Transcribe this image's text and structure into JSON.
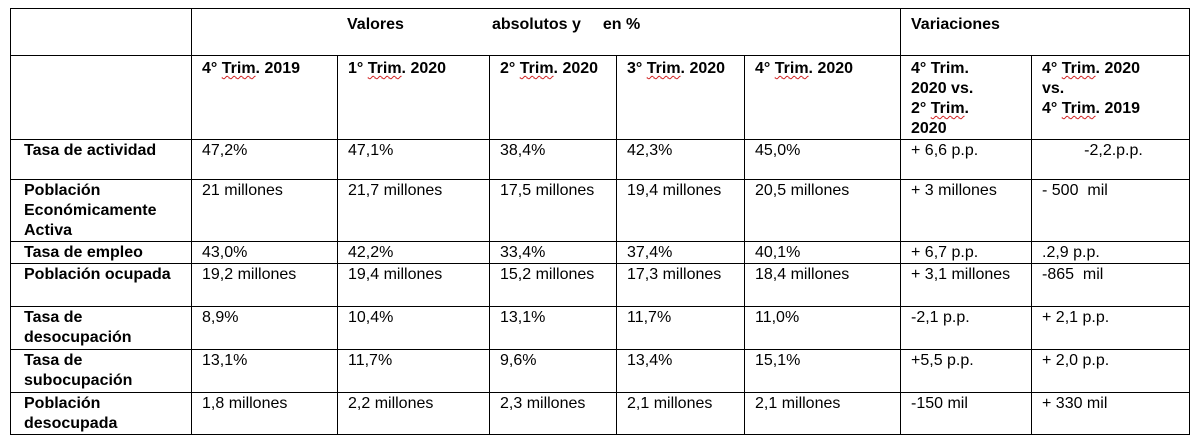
{
  "header": {
    "group_left_1": "Valores",
    "group_left_2": "absolutos y",
    "group_left_3": "en %",
    "group_right": "Variaciones"
  },
  "columns": [
    {
      "prefix": "4° ",
      "trim": "Trim",
      "suffix": ". 2019"
    },
    {
      "prefix": "1° ",
      "trim": "Trim",
      "suffix": ". 2020"
    },
    {
      "prefix": "2° ",
      "trim": "Trim",
      "suffix": ". 2020"
    },
    {
      "prefix": "3° ",
      "trim": "Trim",
      "suffix": ". 2020"
    },
    {
      "prefix": "4° ",
      "trim": "Trim",
      "suffix": ". 2020"
    },
    {
      "line1": "4° Trim.",
      "line2": "2020 vs.",
      "line3_prefix": "2° ",
      "line3_trim": "Trim",
      "line3_suffix": ".",
      "line4": "2020"
    },
    {
      "line1_prefix": "4° ",
      "line1_trim": "Trim",
      "line1_suffix": ". 2020",
      "line2": "vs.",
      "line3_prefix": "4° ",
      "line3_trim": "Trim",
      "line3_suffix": ". 2019"
    }
  ],
  "rows": [
    {
      "label": "Tasa de actividad",
      "values": [
        "47,2%",
        "47,1%",
        "38,4%",
        "42,3%",
        "45,0%",
        "+ 6,6 p.p.",
        "-2,2.p.p."
      ]
    },
    {
      "label": "Población Económicamente Activa",
      "values": [
        "21 millones",
        "21,7 millones",
        "17,5 millones",
        "19,4 millones",
        "20,5 millones",
        "+ 3 millones",
        "- 500  mil"
      ]
    },
    {
      "label": "Tasa de empleo",
      "values": [
        "43,0%",
        "42,2%",
        "33,4%",
        "37,4%",
        "40,1%",
        "+ 6,7 p.p.",
        ".2,9 p.p."
      ]
    },
    {
      "label": "Población ocupada",
      "values": [
        "19,2 millones",
        "19,4 millones",
        "15,2 millones",
        "17,3 millones",
        "18,4 millones",
        "+ 3,1 millones",
        "-865  mil"
      ]
    },
    {
      "label": "Tasa de desocupación",
      "values": [
        "8,9%",
        "10,4%",
        "13,1%",
        "11,7%",
        "11,0%",
        "-2,1 p.p.",
        "+ 2,1 p.p."
      ]
    },
    {
      "label": "Tasa de subocupación",
      "values": [
        "13,1%",
        "11,7%",
        "9,6%",
        "13,4%",
        "15,1%",
        "+5,5 p.p.",
        "+ 2,0 p.p."
      ]
    },
    {
      "label": "Población desocupada",
      "values": [
        "1,8 millones",
        "2,2 millones",
        "2,3 millones",
        "2,1 millones",
        "2,1 millones",
        "-150 mil",
        "+ 330 mil"
      ]
    }
  ]
}
